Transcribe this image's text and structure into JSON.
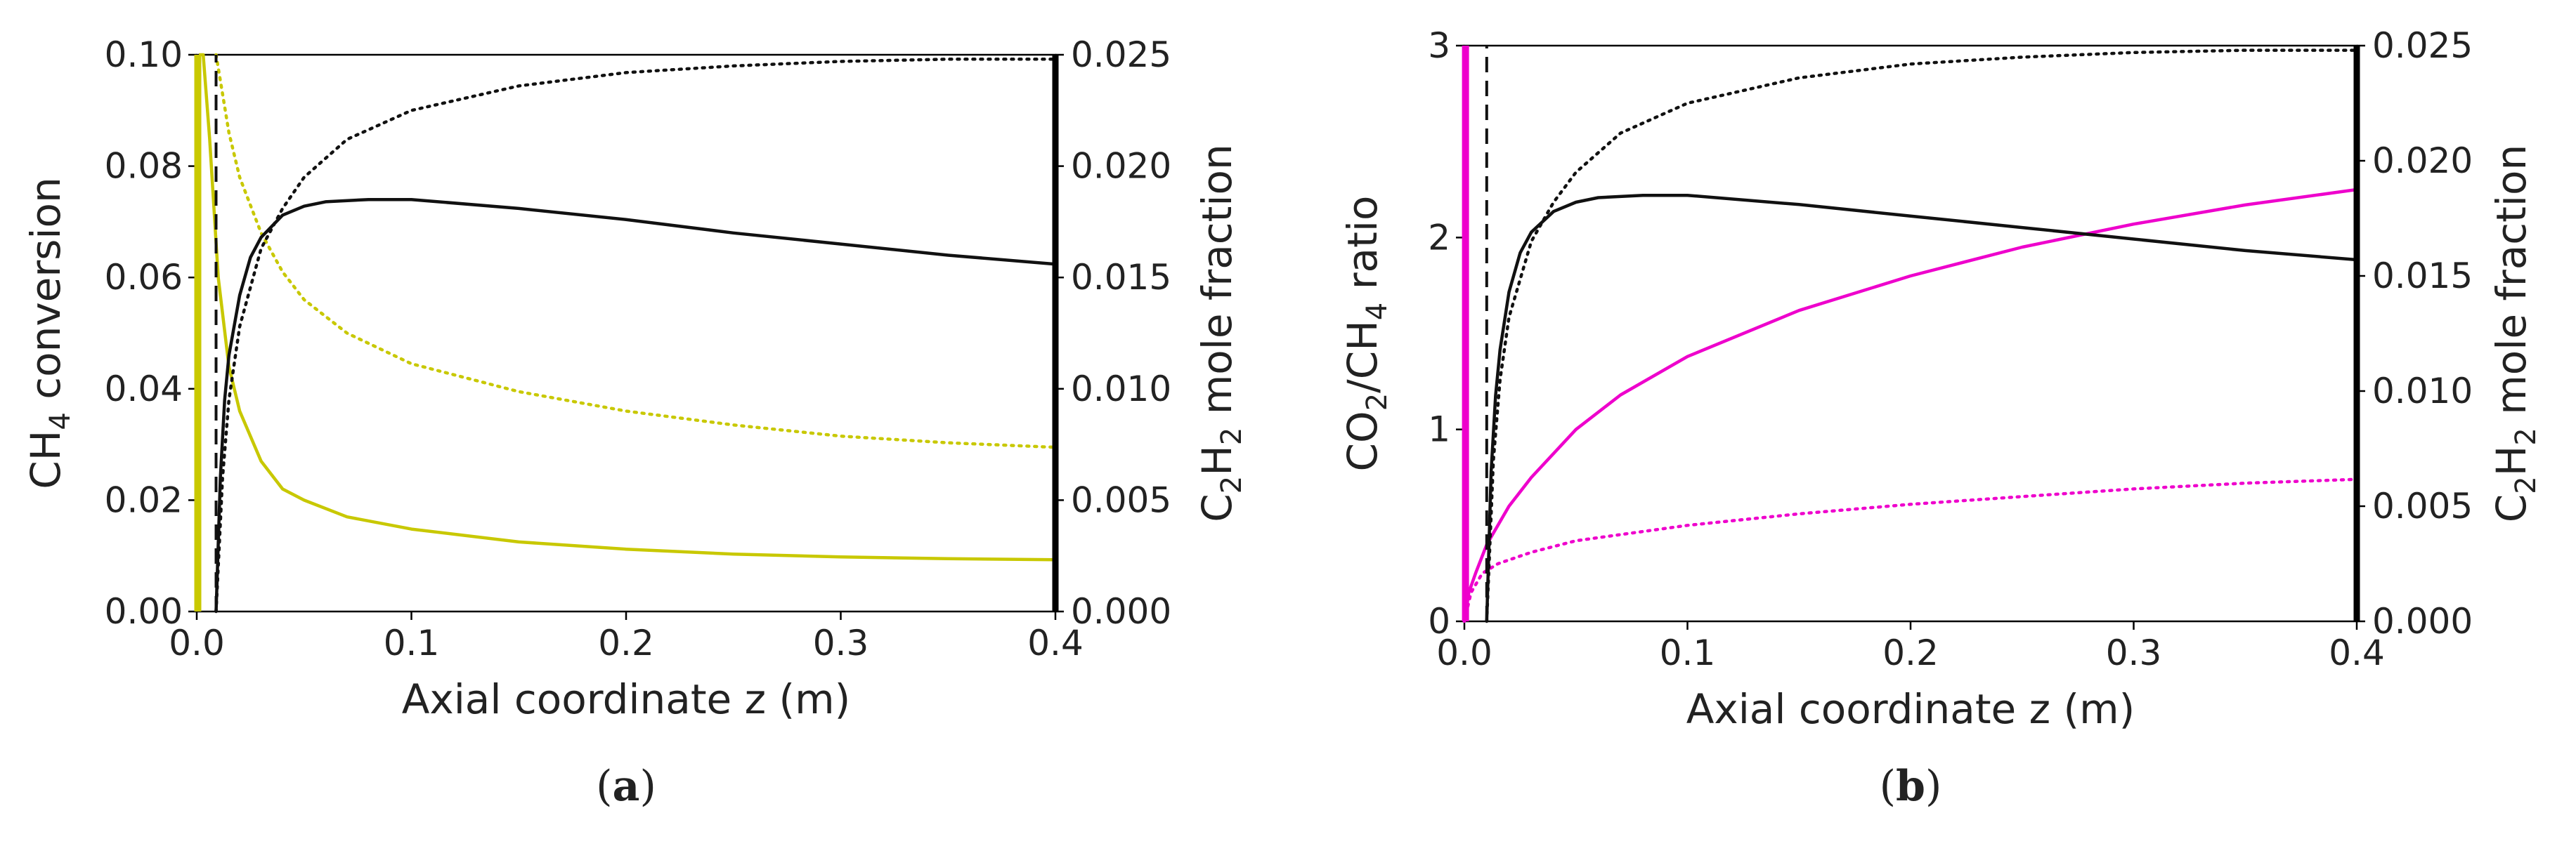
{
  "colors": {
    "yellow": "#c8c800",
    "magenta": "#ee00cc",
    "black": "#111111",
    "axis": "#000000"
  },
  "chart_data": [
    {
      "type": "line",
      "panel_label": "a",
      "xlabel": "Axial coordinate z (m)",
      "ylabel_left": {
        "pre": "CH",
        "sub": "4",
        "post": " conversion"
      },
      "ylabel_right": {
        "pre": "C",
        "sub1": "2",
        "mid": "H",
        "sub2": "2",
        "post": " mole fraction"
      },
      "xlim": [
        0,
        0.4
      ],
      "ylim_left": [
        0,
        0.1
      ],
      "ylim_right": [
        0,
        0.025
      ],
      "x_ticks": [
        0.0,
        0.1,
        0.2,
        0.3,
        0.4
      ],
      "x_tick_labels": [
        "0.0",
        "0.1",
        "0.2",
        "0.3",
        "0.4"
      ],
      "y_left_ticks": [
        0,
        0.02,
        0.04,
        0.06,
        0.08,
        0.1
      ],
      "y_left_tick_labels": [
        "0.00",
        "0.02",
        "0.04",
        "0.06",
        "0.08",
        "0.10"
      ],
      "y_right_ticks": [
        0,
        0.005,
        0.01,
        0.015,
        0.02,
        0.025
      ],
      "y_right_tick_labels": [
        "0.000",
        "0.005",
        "0.010",
        "0.015",
        "0.020",
        "0.025"
      ],
      "series": [
        {
          "name": "CH4 conversion (solid)",
          "axis": "left",
          "color": "yellow",
          "style": "solid",
          "x": [
            0.001,
            0.003,
            0.006,
            0.01,
            0.015,
            0.02,
            0.03,
            0.04,
            0.05,
            0.07,
            0.1,
            0.15,
            0.2,
            0.25,
            0.3,
            0.35,
            0.4
          ],
          "y": [
            0.1,
            0.1,
            0.085,
            0.06,
            0.044,
            0.036,
            0.027,
            0.022,
            0.02,
            0.017,
            0.0148,
            0.0125,
            0.0112,
            0.0103,
            0.0098,
            0.0095,
            0.0093
          ]
        },
        {
          "name": "CH4 conversion (dotted)",
          "axis": "left",
          "color": "yellow",
          "style": "dotted",
          "x": [
            0.009,
            0.012,
            0.015,
            0.02,
            0.03,
            0.04,
            0.05,
            0.07,
            0.1,
            0.15,
            0.2,
            0.25,
            0.3,
            0.35,
            0.4
          ],
          "y": [
            0.1,
            0.093,
            0.086,
            0.078,
            0.068,
            0.061,
            0.056,
            0.05,
            0.0445,
            0.0395,
            0.036,
            0.0335,
            0.0315,
            0.0303,
            0.0295
          ]
        },
        {
          "name": "CH4 conversion (edge)",
          "axis": "left",
          "color": "yellow",
          "style": "thick",
          "x": [
            0.0005,
            0.0005
          ],
          "y": [
            0,
            0.1
          ]
        },
        {
          "name": "C2H2 mole fraction (solid)",
          "axis": "right",
          "color": "black",
          "style": "solid",
          "x": [
            0.009,
            0.011,
            0.013,
            0.015,
            0.02,
            0.025,
            0.03,
            0.04,
            0.05,
            0.06,
            0.08,
            0.1,
            0.15,
            0.2,
            0.25,
            0.3,
            0.35,
            0.4
          ],
          "y": [
            0.0,
            0.006,
            0.0095,
            0.0115,
            0.0142,
            0.0159,
            0.0168,
            0.0178,
            0.0182,
            0.0184,
            0.0185,
            0.0185,
            0.0181,
            0.0176,
            0.017,
            0.0165,
            0.016,
            0.0156
          ]
        },
        {
          "name": "C2H2 mole fraction (dotted)",
          "axis": "right",
          "color": "black",
          "style": "dotted",
          "x": [
            0.009,
            0.012,
            0.015,
            0.02,
            0.03,
            0.04,
            0.05,
            0.07,
            0.1,
            0.15,
            0.2,
            0.25,
            0.3,
            0.35,
            0.4
          ],
          "y": [
            0.0,
            0.006,
            0.0095,
            0.0128,
            0.0163,
            0.0181,
            0.0195,
            0.0212,
            0.0225,
            0.0236,
            0.0242,
            0.0245,
            0.0247,
            0.0248,
            0.0248
          ]
        },
        {
          "name": "C2H2 mole fraction (dashed)",
          "axis": "right",
          "color": "black",
          "style": "dashed",
          "x": [
            0.009,
            0.009
          ],
          "y": [
            0,
            0.025
          ]
        }
      ]
    },
    {
      "type": "line",
      "panel_label": "b",
      "xlabel": "Axial coordinate z (m)",
      "ylabel_left": {
        "pre": "CO",
        "sub1": "2",
        "mid": "/CH",
        "sub2": "4",
        "post": " ratio"
      },
      "ylabel_right": {
        "pre": "C",
        "sub1": "2",
        "mid": "H",
        "sub2": "2",
        "post": " mole fraction"
      },
      "xlim": [
        0,
        0.4
      ],
      "ylim_left": [
        0,
        3
      ],
      "ylim_right": [
        0,
        0.025
      ],
      "x_ticks": [
        0.0,
        0.1,
        0.2,
        0.3,
        0.4
      ],
      "x_tick_labels": [
        "0.0",
        "0.1",
        "0.2",
        "0.3",
        "0.4"
      ],
      "y_left_ticks": [
        0,
        1,
        2,
        3
      ],
      "y_left_tick_labels": [
        "0",
        "1",
        "2",
        "3"
      ],
      "y_right_ticks": [
        0,
        0.005,
        0.01,
        0.015,
        0.02,
        0.025
      ],
      "y_right_tick_labels": [
        "0.000",
        "0.005",
        "0.010",
        "0.015",
        "0.020",
        "0.025"
      ],
      "series": [
        {
          "name": "CO2/CH4 ratio (solid)",
          "axis": "left",
          "color": "magenta",
          "style": "solid",
          "x": [
            0.0,
            0.002,
            0.005,
            0.01,
            0.02,
            0.03,
            0.05,
            0.07,
            0.1,
            0.15,
            0.2,
            0.25,
            0.3,
            0.35,
            0.4
          ],
          "y": [
            0.0,
            0.15,
            0.25,
            0.4,
            0.6,
            0.75,
            1.0,
            1.18,
            1.38,
            1.62,
            1.8,
            1.95,
            2.07,
            2.17,
            2.25
          ]
        },
        {
          "name": "CO2/CH4 ratio (dotted)",
          "axis": "left",
          "color": "magenta",
          "style": "dotted",
          "x": [
            0.0,
            0.003,
            0.008,
            0.015,
            0.03,
            0.05,
            0.1,
            0.15,
            0.2,
            0.25,
            0.3,
            0.35,
            0.4
          ],
          "y": [
            0.0,
            0.15,
            0.25,
            0.3,
            0.36,
            0.42,
            0.5,
            0.56,
            0.61,
            0.65,
            0.69,
            0.72,
            0.74
          ]
        },
        {
          "name": "CO2/CH4 ratio (edge)",
          "axis": "left",
          "color": "magenta",
          "style": "thick",
          "x": [
            0.0005,
            0.0005
          ],
          "y": [
            0,
            3
          ]
        },
        {
          "name": "C2H2 mole fraction (solid)",
          "axis": "right",
          "color": "black",
          "style": "solid",
          "x": [
            0.01,
            0.012,
            0.014,
            0.016,
            0.02,
            0.025,
            0.03,
            0.04,
            0.05,
            0.06,
            0.08,
            0.1,
            0.15,
            0.2,
            0.25,
            0.3,
            0.35,
            0.4
          ],
          "y": [
            0.0,
            0.0065,
            0.0098,
            0.0118,
            0.0143,
            0.016,
            0.0169,
            0.0178,
            0.0182,
            0.0184,
            0.0185,
            0.0185,
            0.0181,
            0.0176,
            0.0171,
            0.0166,
            0.0161,
            0.0157
          ]
        },
        {
          "name": "C2H2 mole fraction (dotted)",
          "axis": "right",
          "color": "black",
          "style": "dotted",
          "x": [
            0.01,
            0.013,
            0.016,
            0.02,
            0.03,
            0.04,
            0.05,
            0.07,
            0.1,
            0.15,
            0.2,
            0.25,
            0.3,
            0.35,
            0.4
          ],
          "y": [
            0.0,
            0.007,
            0.0105,
            0.0132,
            0.0165,
            0.0182,
            0.0195,
            0.0212,
            0.0225,
            0.0236,
            0.0242,
            0.0245,
            0.0247,
            0.0248,
            0.0248
          ]
        },
        {
          "name": "C2H2 mole fraction (dashed)",
          "axis": "right",
          "color": "black",
          "style": "dashed",
          "x": [
            0.01,
            0.01
          ],
          "y": [
            0,
            0.025
          ]
        }
      ]
    }
  ]
}
